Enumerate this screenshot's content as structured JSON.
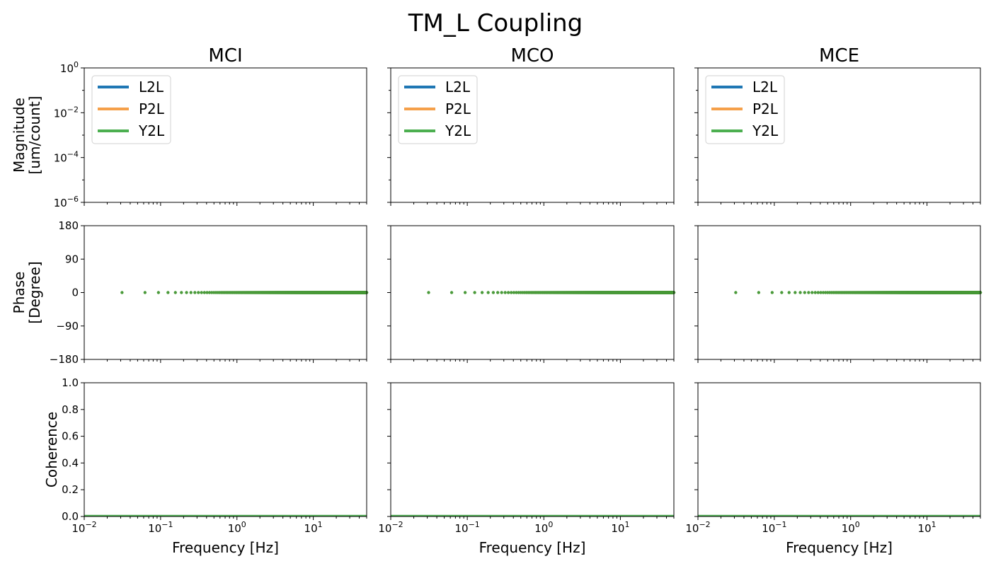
{
  "chart_data": {
    "type": "line",
    "title": "TM_L Coupling",
    "columns": [
      "MCI",
      "MCO",
      "MCE"
    ],
    "xlabel": "Frequency [Hz]",
    "xscale": "log",
    "xlim": [
      0.01,
      50
    ],
    "x_ticks": [
      {
        "value": 0.01,
        "base": "10",
        "exp": "−2"
      },
      {
        "value": 0.1,
        "base": "10",
        "exp": "−1"
      },
      {
        "value": 1,
        "base": "10",
        "exp": "0"
      },
      {
        "value": 10,
        "base": "10",
        "exp": "1"
      }
    ],
    "rows": [
      {
        "name": "magnitude",
        "ylabel": [
          "Magnitude",
          "[um/count]"
        ],
        "yscale": "log",
        "ylim": [
          1e-06,
          1
        ],
        "y_ticks": [
          {
            "value": 1,
            "base": "10",
            "exp": "0"
          },
          {
            "value": 0.01,
            "base": "10",
            "exp": "−2"
          },
          {
            "value": 0.0001,
            "base": "10",
            "exp": "−4"
          },
          {
            "value": 1e-06,
            "base": "10",
            "exp": "−6"
          }
        ],
        "legend": true,
        "legend_loc": "upper-left"
      },
      {
        "name": "phase",
        "ylabel": [
          "Phase",
          "[Degree]"
        ],
        "yscale": "linear",
        "ylim": [
          -180,
          180
        ],
        "y_ticks": [
          {
            "value": 180,
            "label": "180"
          },
          {
            "value": 90,
            "label": "90"
          },
          {
            "value": 0,
            "label": "0"
          },
          {
            "value": -90,
            "label": "−90"
          },
          {
            "value": -180,
            "label": "−180"
          }
        ],
        "points": {
          "x_step": 0.03125,
          "x_max": 50,
          "y": 0
        },
        "point_color": "#4a9a3a"
      },
      {
        "name": "coherence",
        "ylabel": [
          "Coherence"
        ],
        "yscale": "linear",
        "ylim": [
          0,
          1
        ],
        "y_ticks": [
          {
            "value": 1,
            "label": "1.0"
          },
          {
            "value": 0.8,
            "label": "0.8"
          },
          {
            "value": 0.6,
            "label": "0.6"
          },
          {
            "value": 0.4,
            "label": "0.4"
          },
          {
            "value": 0.2,
            "label": "0.2"
          },
          {
            "value": 0,
            "label": "0.0"
          }
        ],
        "line": {
          "y": 0,
          "color": "#4caf50"
        }
      }
    ],
    "series": [
      {
        "name": "L2L",
        "color": "#1f77b4"
      },
      {
        "name": "P2L",
        "color": "#f5a04a"
      },
      {
        "name": "Y2L",
        "color": "#4caf50"
      }
    ]
  }
}
